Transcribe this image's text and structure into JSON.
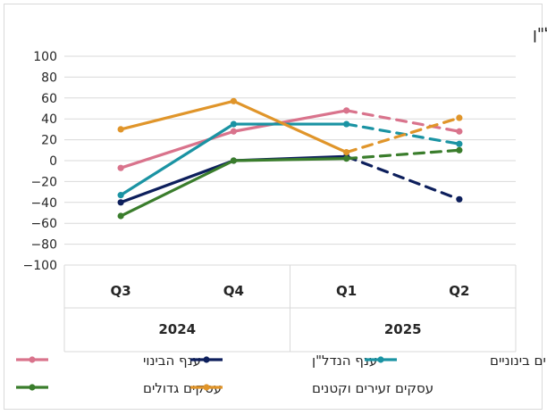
{
  "chart_data": {
    "type": "line",
    "title": "ב. עסקים לפי גודל עסק וענפי הבינוי והנדל\"ן",
    "xlabel": "",
    "ylabel": "",
    "ylim": [
      -100,
      100
    ],
    "yticks": [
      100,
      80,
      60,
      40,
      20,
      0,
      -20,
      -40,
      -60,
      -80,
      -100
    ],
    "categories": [
      "Q3",
      "Q4",
      "Q1",
      "Q2"
    ],
    "years": [
      {
        "label": "2024",
        "categories": [
          "Q3",
          "Q4"
        ]
      },
      {
        "label": "2025",
        "categories": [
          "Q1",
          "Q2"
        ]
      }
    ],
    "grid": true,
    "legend_position": "bottom",
    "forecast_from_index": 2,
    "series": [
      {
        "name": "ענף הבינוי",
        "color": "#d9738c",
        "values": [
          -7,
          28,
          48,
          28
        ]
      },
      {
        "name": "ענף הנדל\"ן",
        "color": "#0d1f5c",
        "values": [
          -40,
          0,
          4,
          -37
        ]
      },
      {
        "name": "עסקים בינוניים",
        "color": "#1a93a3",
        "values": [
          -33,
          35,
          35,
          16
        ]
      },
      {
        "name": "עסקים גדולים",
        "color": "#3a7d2c",
        "values": [
          -53,
          0,
          2,
          10
        ]
      },
      {
        "name": "עסקים זעירים וקטנים",
        "color": "#e0952a",
        "values": [
          30,
          57,
          8,
          41
        ]
      }
    ]
  }
}
